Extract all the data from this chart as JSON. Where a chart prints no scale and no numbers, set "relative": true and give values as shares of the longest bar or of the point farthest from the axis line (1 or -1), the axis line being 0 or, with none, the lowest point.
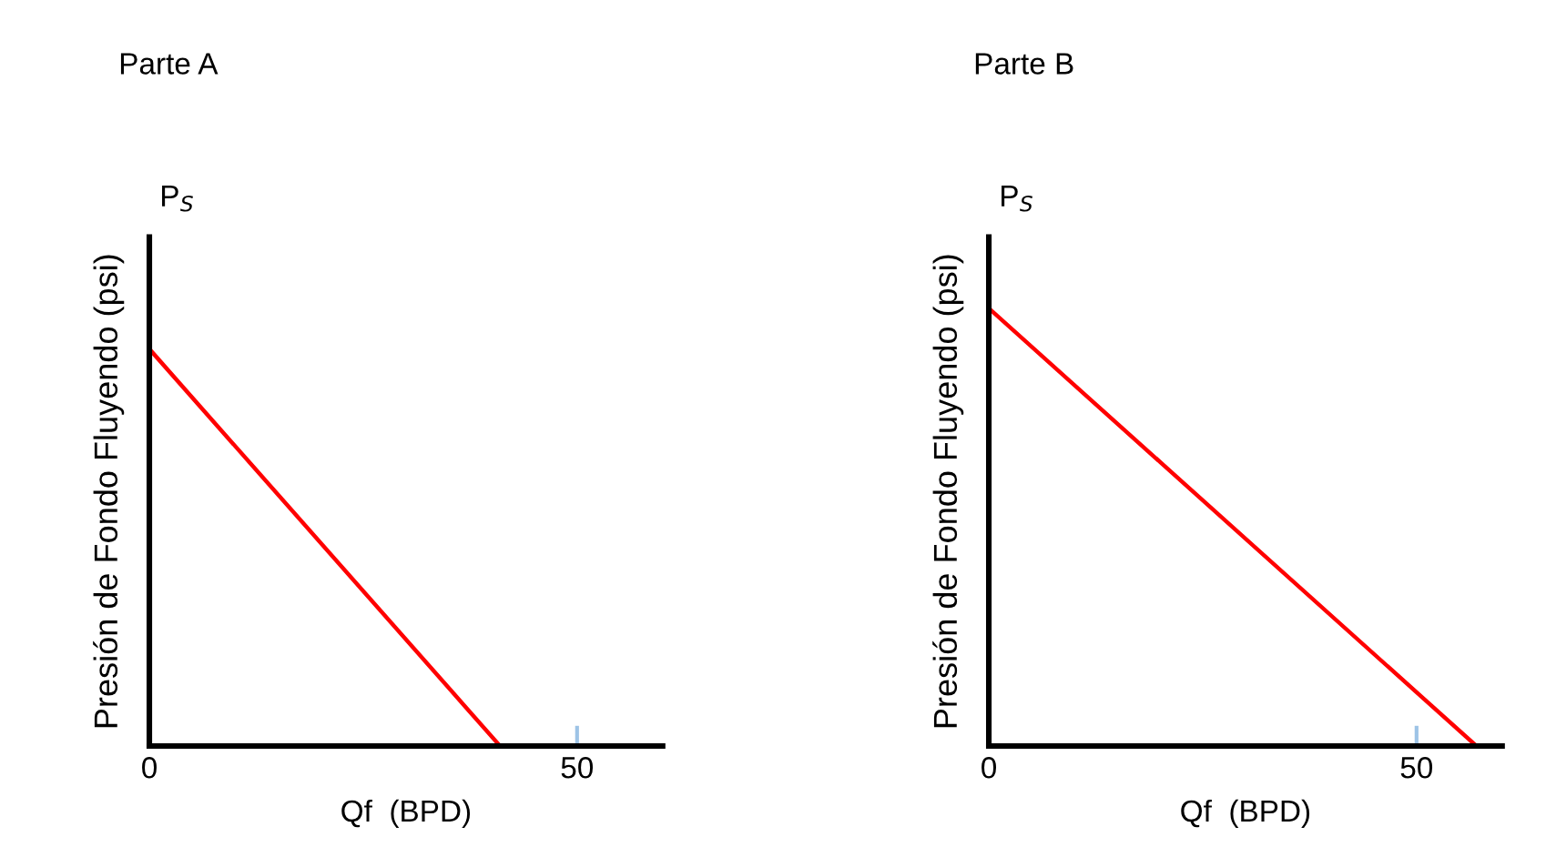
{
  "chart_data": [
    {
      "type": "line",
      "title": "Parte A",
      "xlabel": "Qf  (BPD)",
      "ylabel": "Presión de Fondo Fluyendo (psi)",
      "annotations": [
        "P$_{S}$"
      ],
      "relative": true,
      "x": [
        0,
        41
      ],
      "xlim": [
        0,
        60
      ],
      "xticks": [
        0,
        50
      ],
      "series": [
        {
          "color": "#ff0000",
          "values": [
            1,
            0
          ]
        }
      ],
      "grid": false,
      "legend": false
    },
    {
      "type": "line",
      "title": "Parte B",
      "xlabel": "Qf  (BPD)",
      "ylabel": "Presión de Fondo Fluyendo (psi)",
      "annotations": [
        "P$_{S}$"
      ],
      "relative": true,
      "x": [
        0,
        57
      ],
      "xlim": [
        0,
        60
      ],
      "xticks": [
        0,
        50
      ],
      "series": [
        {
          "color": "#ff0000",
          "values": [
            1,
            0
          ]
        }
      ],
      "grid": false,
      "legend": false
    }
  ]
}
